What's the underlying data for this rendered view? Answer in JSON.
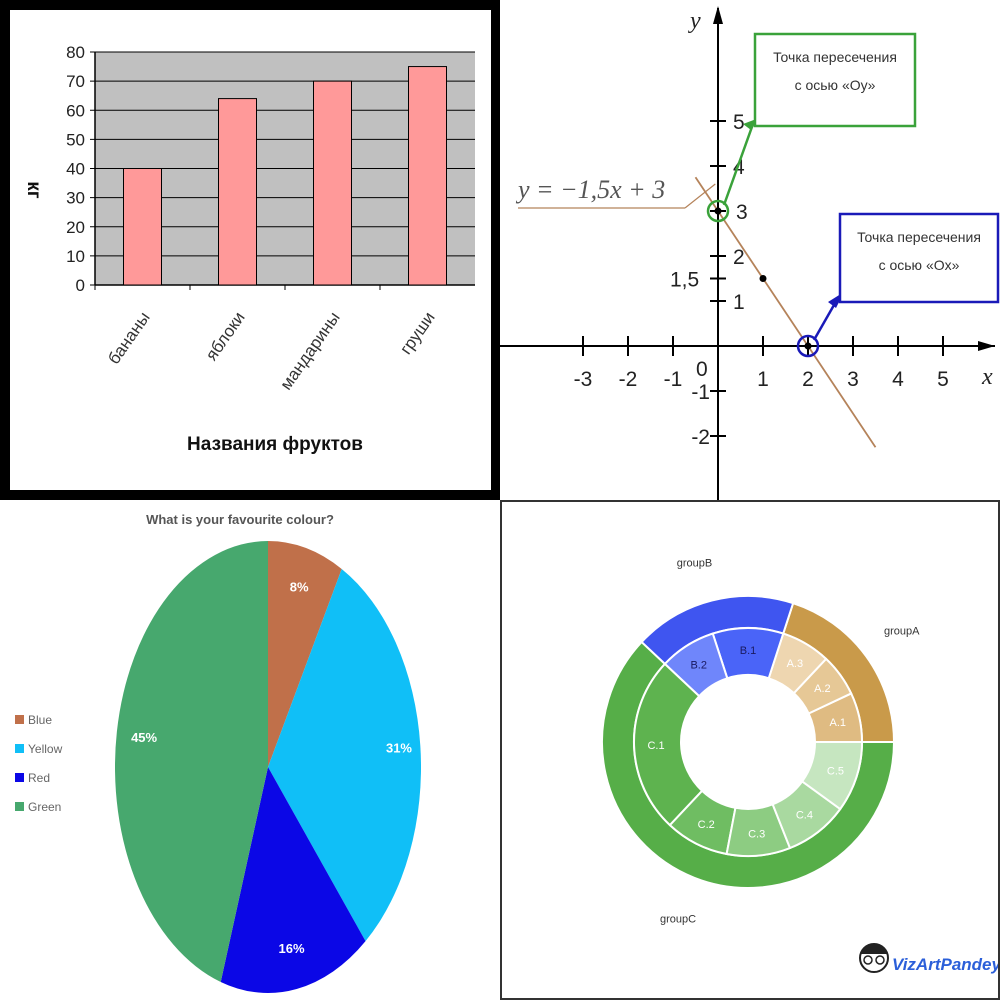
{
  "chart_data": [
    {
      "type": "bar",
      "title": "",
      "xlabel": "Названия фруктов",
      "ylabel": "кг",
      "categories": [
        "бананы",
        "яблоки",
        "мандарины",
        "груши"
      ],
      "values": [
        40,
        64,
        70,
        75
      ],
      "ylim": [
        0,
        80
      ],
      "yticks": [
        0,
        10,
        20,
        30,
        40,
        50,
        60,
        70,
        80
      ],
      "grid": true,
      "colors": {
        "bar": "#ff9999",
        "plot_bg": "#c0c0c0",
        "frame": "#000000"
      }
    },
    {
      "type": "line",
      "equation": "y = −1,5x + 3",
      "xlabel": "x",
      "ylabel": "y",
      "x": [
        -0.5,
        3.5
      ],
      "y": [
        3.75,
        -2.25
      ],
      "xlim": [
        -4,
        5.6
      ],
      "ylim": [
        -2.7,
        5.6
      ],
      "xticks": [
        -3,
        -2,
        -1,
        1,
        2,
        3,
        4,
        5
      ],
      "yticks": [
        -2,
        -1,
        1,
        1.5,
        2,
        3,
        4,
        5
      ],
      "xtick_labels": [
        "-3",
        "-2",
        "-1",
        "1",
        "2",
        "3",
        "4",
        "5"
      ],
      "ytick_labels": [
        "-2",
        "-1",
        "1",
        "1,5",
        "2",
        "3",
        "4",
        "5"
      ],
      "origin_label": "0",
      "points": [
        {
          "x": 0,
          "y": 3,
          "circled": true
        },
        {
          "x": 1,
          "y": 1.5,
          "circled": false
        },
        {
          "x": 2,
          "y": 0,
          "circled": true
        }
      ],
      "annotations": [
        {
          "text": [
            "Точка пересечения",
            "с осью «Oy»"
          ],
          "target": [
            0,
            3
          ],
          "color": "#3aa23a"
        },
        {
          "text": [
            "Точка пересечения",
            "с осью «Ox»"
          ],
          "target": [
            2,
            0
          ],
          "color": "#1a1ab8"
        }
      ],
      "colors": {
        "line": "#b5835a",
        "axis": "#000000"
      }
    },
    {
      "type": "pie",
      "title": "What is your favourite colour?",
      "labels": [
        "Blue",
        "Yellow",
        "Red",
        "Green"
      ],
      "values": [
        8,
        31,
        16,
        45
      ],
      "value_labels": [
        "8%",
        "31%",
        "16%",
        "45%"
      ],
      "colors": [
        "#c0704a",
        "#10bff7",
        "#0b07e6",
        "#47a86e"
      ],
      "legend": "left"
    },
    {
      "type": "pie",
      "subtype": "nested-donut",
      "outer": {
        "labels": [
          "groupA",
          "groupB",
          "groupC"
        ],
        "values": [
          20,
          18,
          62
        ],
        "colors": [
          "#c99a4a",
          "#3f55f0",
          "#56ae48"
        ]
      },
      "inner": {
        "labels": [
          "A.1",
          "A.2",
          "A.3",
          "B.1",
          "B.2",
          "C.1",
          "C.2",
          "C.3",
          "C.4",
          "C.5"
        ],
        "values": [
          7,
          6,
          7,
          10,
          8,
          25,
          9,
          9,
          9,
          10
        ],
        "colors": [
          "#dfbb82",
          "#e6c896",
          "#eed6b0",
          "#4a64f8",
          "#6f86fb",
          "#5eb34f",
          "#6fbd62",
          "#8dcc82",
          "#a9d9a0",
          "#c6e6c0"
        ]
      },
      "watermark": "VizArtPandey"
    }
  ]
}
